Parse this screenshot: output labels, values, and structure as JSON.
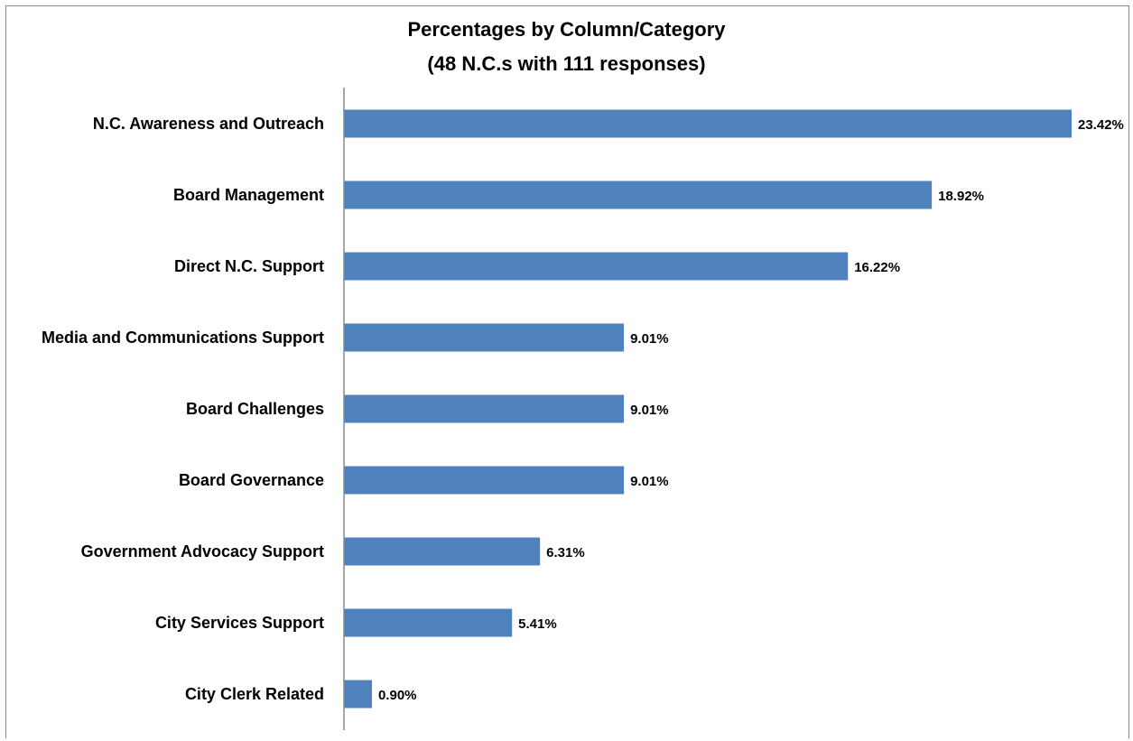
{
  "chart_data": {
    "type": "bar",
    "orientation": "horizontal",
    "title": "Percentages by Column/Category",
    "subtitle": "(48 N.C.s with 111 responses)",
    "categories": [
      "N.C.  Awareness and Outreach",
      "Board Management",
      "Direct N.C. Support",
      "Media and Communications Support",
      "Board Challenges",
      "Board Governance",
      "Government Advocacy Support",
      "City Services Support",
      "City Clerk Related"
    ],
    "values": [
      23.42,
      18.92,
      16.22,
      9.01,
      9.01,
      9.01,
      6.31,
      5.41,
      0.9
    ],
    "value_labels": [
      "23.42%",
      "18.92%",
      "16.22%",
      "9.01%",
      "9.01%",
      "9.01%",
      "6.31%",
      "5.41%",
      "0.90%"
    ],
    "bar_color": "#4F81BD",
    "grid": false,
    "legend": "none"
  }
}
